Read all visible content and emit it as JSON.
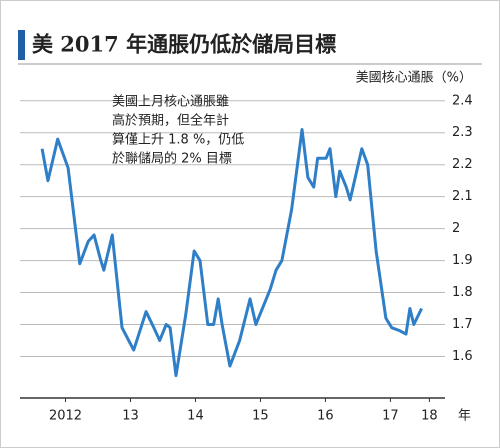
{
  "chart_data": {
    "type": "line",
    "title": "美 2017 年通脹仍低於儲局目標",
    "y_label": "美國核心通脹（%）",
    "x_label": "年",
    "annotation": [
      "美國上月核心通脹雖",
      "高於預期，但全年計",
      "算僅上升 1.8 %，仍低",
      "於聯儲局的 2% 目標"
    ],
    "x": [
      2012.14,
      2012.23,
      2012.38,
      2012.54,
      2012.72,
      2012.85,
      2012.94,
      2013.03,
      2013.09,
      2013.22,
      2013.37,
      2013.55,
      2013.74,
      2013.86,
      2013.95,
      2014.05,
      2014.11,
      2014.2,
      2014.35,
      2014.48,
      2014.57,
      2014.69,
      2014.78,
      2014.85,
      2014.91,
      2015.03,
      2015.18,
      2015.34,
      2015.43,
      2015.55,
      2015.65,
      2015.74,
      2015.83,
      2015.98,
      2016.14,
      2016.23,
      2016.32,
      2016.38,
      2016.51,
      2016.57,
      2016.66,
      2016.72,
      2016.82,
      2016.88,
      2016.97,
      2017.06,
      2017.15,
      2017.28,
      2017.43,
      2017.52,
      2017.65,
      2017.74,
      2017.8,
      2017.86,
      2017.98
    ],
    "series": [
      {
        "name": "美國核心通脹",
        "color": "#2f7fc8",
        "values": [
          2.25,
          2.15,
          2.28,
          2.19,
          1.89,
          1.96,
          1.98,
          1.91,
          1.87,
          1.98,
          1.69,
          1.62,
          1.74,
          1.69,
          1.65,
          1.7,
          1.69,
          1.54,
          1.73,
          1.93,
          1.9,
          1.7,
          1.7,
          1.78,
          1.7,
          1.57,
          1.65,
          1.78,
          1.7,
          1.76,
          1.81,
          1.87,
          1.9,
          2.06,
          2.31,
          2.16,
          2.13,
          2.22,
          2.22,
          2.25,
          2.1,
          2.18,
          2.13,
          2.09,
          2.17,
          2.25,
          2.2,
          1.93,
          1.72,
          1.69,
          1.68,
          1.67,
          1.75,
          1.7,
          1.75
        ]
      }
    ],
    "xlim": [
      2011.8,
      2018.34
    ],
    "xticks": [
      {
        "value": 2012.5,
        "label": "2012"
      },
      {
        "value": 2013.5,
        "label": "13"
      },
      {
        "value": 2014.5,
        "label": "14"
      },
      {
        "value": 2015.5,
        "label": "15"
      },
      {
        "value": 2016.5,
        "label": "16"
      },
      {
        "value": 2017.5,
        "label": "17"
      },
      {
        "value": 2018.1,
        "label": "18"
      }
    ],
    "ylim": [
      1.47,
      2.44
    ],
    "yticks": [
      2.4,
      2.3,
      2.2,
      2.1,
      2.0,
      1.9,
      1.8,
      1.7,
      1.6
    ],
    "grid": true
  }
}
